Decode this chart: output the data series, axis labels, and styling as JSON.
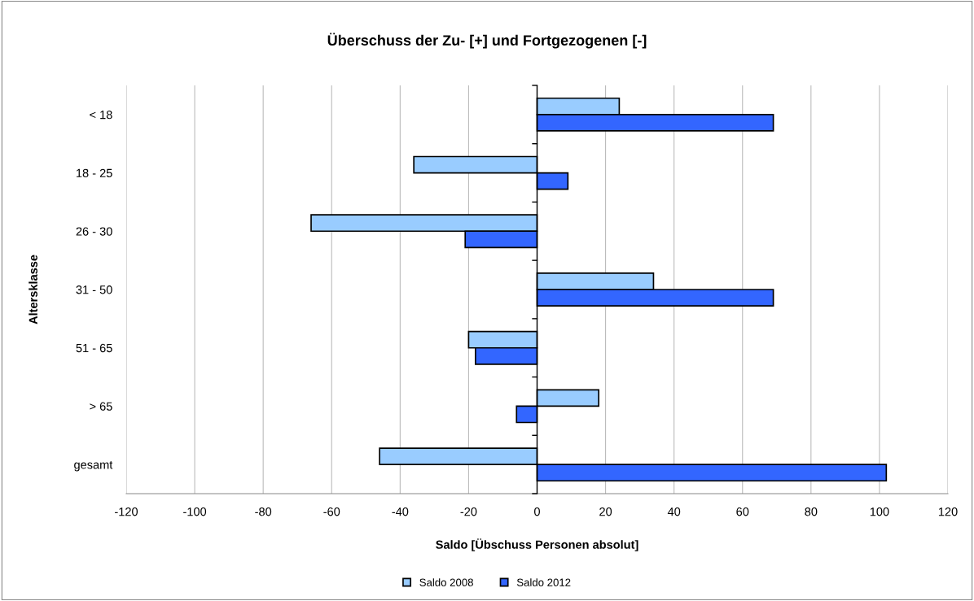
{
  "chart_data": {
    "type": "bar",
    "orientation": "horizontal",
    "title": "Überschuss der Zu- [+] und Fortgezogenen [-]",
    "xlabel": "Saldo [Übschuss Personen absolut]",
    "ylabel": "Altersklasse",
    "categories": [
      "< 18",
      "18 - 25",
      "26 - 30",
      "31 - 50",
      "51 - 65",
      "> 65",
      "gesamt"
    ],
    "series": [
      {
        "name": "Saldo 2008",
        "color": "#99ccff",
        "values": [
          24,
          -36,
          -66,
          34,
          -20,
          18,
          -46
        ]
      },
      {
        "name": "Saldo 2012",
        "color": "#3366ff",
        "values": [
          69,
          9,
          -21,
          69,
          -18,
          -6,
          102
        ]
      }
    ],
    "xlim": [
      -120,
      120
    ],
    "xticks": [
      -120,
      -100,
      -80,
      -60,
      -40,
      -20,
      0,
      20,
      40,
      60,
      80,
      100,
      120
    ],
    "grid": "x",
    "legend": "bottom"
  }
}
